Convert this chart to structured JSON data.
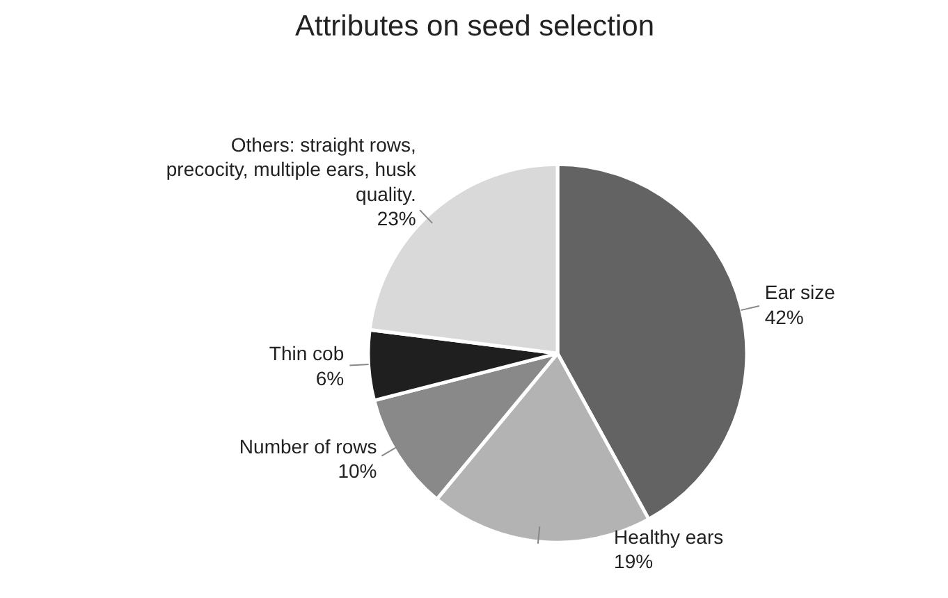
{
  "chart_data": {
    "type": "pie",
    "title": "Attributes on seed selection",
    "categories": [
      "Ear size",
      "Healthy ears",
      "Number of rows",
      "Thin cob",
      "Others: straight rows, precocity, multiple ears, husk quality."
    ],
    "values": [
      42,
      19,
      10,
      6,
      23
    ],
    "value_labels": [
      "42%",
      "19%",
      "10%",
      "6%",
      "23%"
    ],
    "colors": [
      "#636363",
      "#b3b3b3",
      "#898989",
      "#1f1f1f",
      "#d9d9d9"
    ]
  }
}
